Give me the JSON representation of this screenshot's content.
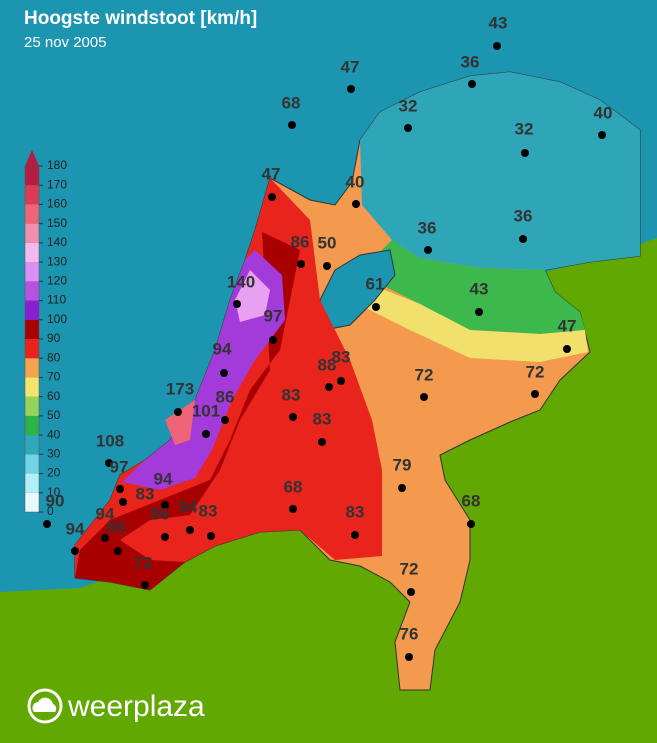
{
  "header": {
    "title": "Hoogste windstoot [km/h]",
    "date": "25 nov 2005"
  },
  "legend": {
    "ticks": [
      0,
      10,
      20,
      30,
      40,
      50,
      60,
      70,
      80,
      90,
      100,
      110,
      120,
      130,
      140,
      150,
      160,
      170,
      180
    ],
    "colors": [
      "#e6fafc",
      "#b2eef5",
      "#6fd3e2",
      "#2ea9bb",
      "#2db34a",
      "#95d45c",
      "#f3e46c",
      "#f7a24e",
      "#e8241c",
      "#a80000",
      "#8a1fcf",
      "#b552e2",
      "#db8ff0",
      "#f4b8ef",
      "#f38fae",
      "#ef6577",
      "#de3a58",
      "#b51d40"
    ]
  },
  "stations": [
    {
      "value": 43
    },
    {
      "value": 47
    },
    {
      "value": 36
    },
    {
      "value": 68
    },
    {
      "value": 32
    },
    {
      "value": 40
    },
    {
      "value": 32
    },
    {
      "value": 47
    },
    {
      "value": 40
    },
    {
      "value": 36
    },
    {
      "value": 36
    },
    {
      "value": 86
    },
    {
      "value": 50
    },
    {
      "value": 140
    },
    {
      "value": 61
    },
    {
      "value": 43
    },
    {
      "value": 47
    },
    {
      "value": 97
    },
    {
      "value": 94
    },
    {
      "value": 88
    },
    {
      "value": 83
    },
    {
      "value": 72
    },
    {
      "value": 72
    },
    {
      "value": 173
    },
    {
      "value": 86
    },
    {
      "value": 101
    },
    {
      "value": 83
    },
    {
      "value": 83
    },
    {
      "value": 108
    },
    {
      "value": 97
    },
    {
      "value": 94
    },
    {
      "value": 83
    },
    {
      "value": 79
    },
    {
      "value": 68
    },
    {
      "value": 83
    },
    {
      "value": 68
    },
    {
      "value": 90
    },
    {
      "value": 94
    },
    {
      "value": 94
    },
    {
      "value": 86
    },
    {
      "value": 86
    },
    {
      "value": 94
    },
    {
      "value": 83
    },
    {
      "value": 72
    },
    {
      "value": 72
    },
    {
      "value": 76
    }
  ],
  "logo": "weerplaza"
}
